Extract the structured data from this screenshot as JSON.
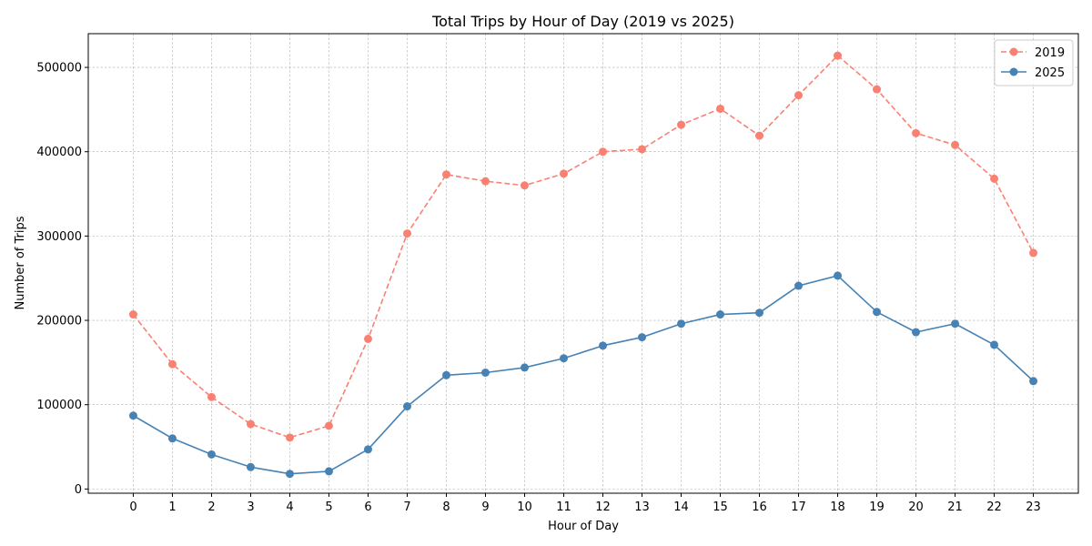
{
  "chart_data": {
    "type": "line",
    "title": "Total Trips by Hour of Day (2019 vs 2025)",
    "xlabel": "Hour of Day",
    "ylabel": "Number of Trips",
    "x": [
      0,
      1,
      2,
      3,
      4,
      5,
      6,
      7,
      8,
      9,
      10,
      11,
      12,
      13,
      14,
      15,
      16,
      17,
      18,
      19,
      20,
      21,
      22,
      23
    ],
    "x_tick_labels": [
      "0",
      "1",
      "2",
      "3",
      "4",
      "5",
      "6",
      "7",
      "8",
      "9",
      "10",
      "11",
      "12",
      "13",
      "14",
      "15",
      "16",
      "17",
      "18",
      "19",
      "20",
      "21",
      "22",
      "23"
    ],
    "y_ticks": [
      0,
      100000,
      200000,
      300000,
      400000,
      500000
    ],
    "y_tick_labels": [
      "0",
      "100000",
      "200000",
      "300000",
      "400000",
      "500000"
    ],
    "xlim": [
      -1.15,
      24.15
    ],
    "ylim": [
      -5000,
      540000
    ],
    "grid": true,
    "legend_position": "top-right",
    "series": [
      {
        "name": "2019",
        "color": "#fa8072",
        "line_style": "dashed",
        "marker": "circle",
        "values": [
          207000,
          148000,
          109000,
          77000,
          61000,
          75000,
          178000,
          303000,
          373000,
          365000,
          360000,
          374000,
          400000,
          403000,
          432000,
          451000,
          419000,
          467000,
          514000,
          474000,
          422000,
          408000,
          368000,
          280000
        ]
      },
      {
        "name": "2025",
        "color": "#4682b4",
        "line_style": "solid",
        "marker": "circle",
        "values": [
          87000,
          60000,
          41000,
          26000,
          18000,
          21000,
          47000,
          98000,
          135000,
          138000,
          144000,
          155000,
          170000,
          180000,
          196000,
          207000,
          209000,
          241000,
          253000,
          210000,
          186000,
          196000,
          171000,
          128000
        ]
      }
    ]
  }
}
